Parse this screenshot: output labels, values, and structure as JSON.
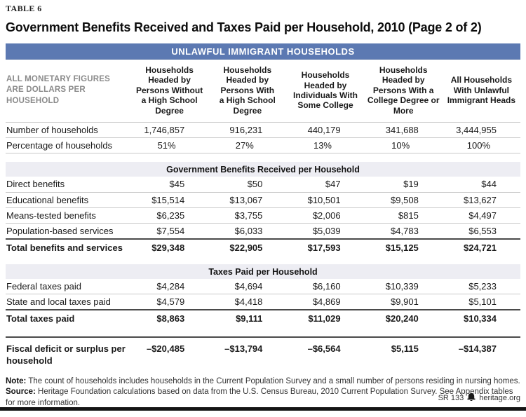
{
  "table_label": "TABLE 6",
  "title": "Government Benefits Received and Taxes Paid per Household, 2010 (Page 2 of 2)",
  "band": {
    "title": "UNLAWFUL IMMIGRANT HOUSEHOLDS",
    "bg_color": "#5c79b2"
  },
  "corner_note": "ALL MONETARY FIGURES\nARE DOLLARS PER\nHOUSEHOLD",
  "columns": [
    "Households\nHeaded by\nPersons Without\na High School\nDegree",
    "Households\nHeaded by\nPersons With\na High School\nDegree",
    "Households\nHeaded by\nIndividuals With\nSome College",
    "Households\nHeaded by\nPersons With a\nCollege Degree or\nMore",
    "All Households\nWith Unlawful\nImmigrant Heads"
  ],
  "household_rows": [
    {
      "label": "Number of households",
      "values": [
        "1,746,857",
        "916,231",
        "440,179",
        "341,688",
        "3,444,955"
      ]
    },
    {
      "label": "Percentage of households",
      "align": "center",
      "values": [
        "51%",
        "27%",
        "13%",
        "10%",
        "100%"
      ]
    }
  ],
  "sections": [
    {
      "header": "Government Benefits Received per Household",
      "rows": [
        {
          "label": "Direct benefits",
          "values": [
            "$45",
            "$50",
            "$47",
            "$19",
            "$44"
          ]
        },
        {
          "label": "Educational benefits",
          "values": [
            "$15,514",
            "$13,067",
            "$10,501",
            "$9,508",
            "$13,627"
          ]
        },
        {
          "label": "Means-tested benefits",
          "values": [
            "$6,235",
            "$3,755",
            "$2,006",
            "$815",
            "$4,497"
          ]
        },
        {
          "label": "Population-based services",
          "values": [
            "$7,554",
            "$6,033",
            "$5,039",
            "$4,783",
            "$6,553"
          ]
        }
      ],
      "total": {
        "label": "Total benefits and services",
        "values": [
          "$29,348",
          "$22,905",
          "$17,593",
          "$15,125",
          "$24,721"
        ]
      }
    },
    {
      "header": "Taxes Paid per Household",
      "rows": [
        {
          "label": "Federal taxes paid",
          "values": [
            "$4,284",
            "$4,694",
            "$6,160",
            "$10,339",
            "$5,233"
          ]
        },
        {
          "label": "State and local taxes paid",
          "values": [
            "$4,579",
            "$4,418",
            "$4,869",
            "$9,901",
            "$5,101"
          ]
        }
      ],
      "total": {
        "label": "Total taxes paid",
        "values": [
          "$8,863",
          "$9,111",
          "$11,029",
          "$20,240",
          "$10,334"
        ]
      }
    }
  ],
  "summary_row": {
    "label": "Fiscal deficit or surplus per\nhousehold",
    "values": [
      "–$20,485",
      "–$13,794",
      "–$6,564",
      "$5,115",
      "–$14,387"
    ]
  },
  "notes": [
    {
      "label": "Note:",
      "text": "The count of households includes households in the Current Population Survey and a small number of persons residing in nursing homes."
    },
    {
      "label": "Source:",
      "text": "Heritage Foundation calculations based on data from the U.S. Census Bureau, 2010 Current Population Survey. See Appendix tables for more information."
    }
  ],
  "footer": {
    "report_id": "SR 133",
    "site": "heritage.org",
    "logo": "heritage-bell-icon"
  },
  "colors": {
    "band_blue": "#5c79b2",
    "section_gray": "#ededf3",
    "hairline": "#c9c9c9",
    "heavy_rule": "#4a4a4a",
    "muted_text": "#8a8a8a"
  }
}
